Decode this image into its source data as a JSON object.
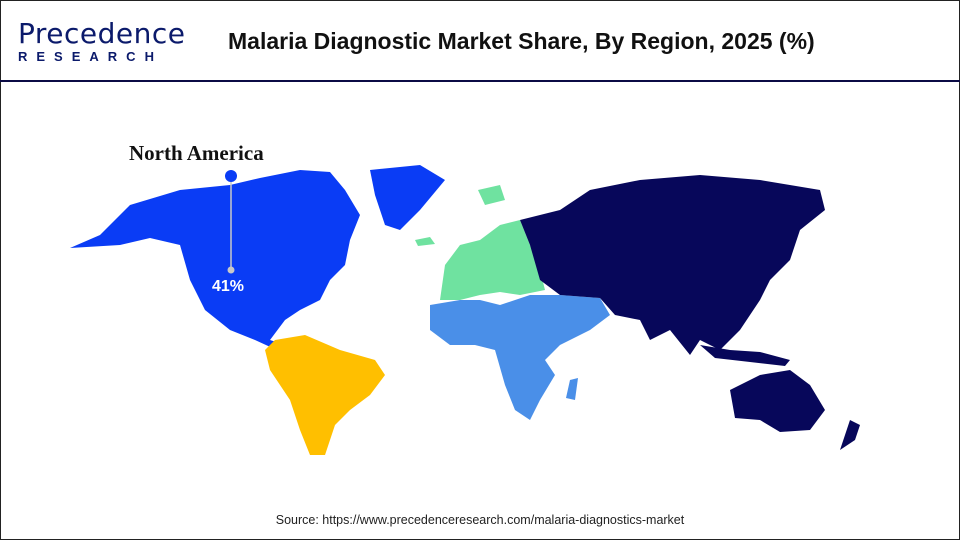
{
  "header": {
    "logo_text": "Precedence",
    "logo_sub": "RESEARCH",
    "title": "Malaria Diagnostic Market Share, By Region, 2025 (%)"
  },
  "map": {
    "highlight": {
      "region": "North America",
      "value": "41%"
    },
    "regions": [
      {
        "name": "North America",
        "color": "#0a3cf5"
      },
      {
        "name": "Latin America",
        "color": "#ffbf00"
      },
      {
        "name": "Europe",
        "color": "#6fe2a0"
      },
      {
        "name": "Middle East and Africa",
        "color": "#4a8fe8"
      },
      {
        "name": "Asia Pacific",
        "color": "#07075a"
      }
    ]
  },
  "footer": {
    "source": "Source: https://www.precedenceresearch.com/malaria-diagnostics-market"
  }
}
